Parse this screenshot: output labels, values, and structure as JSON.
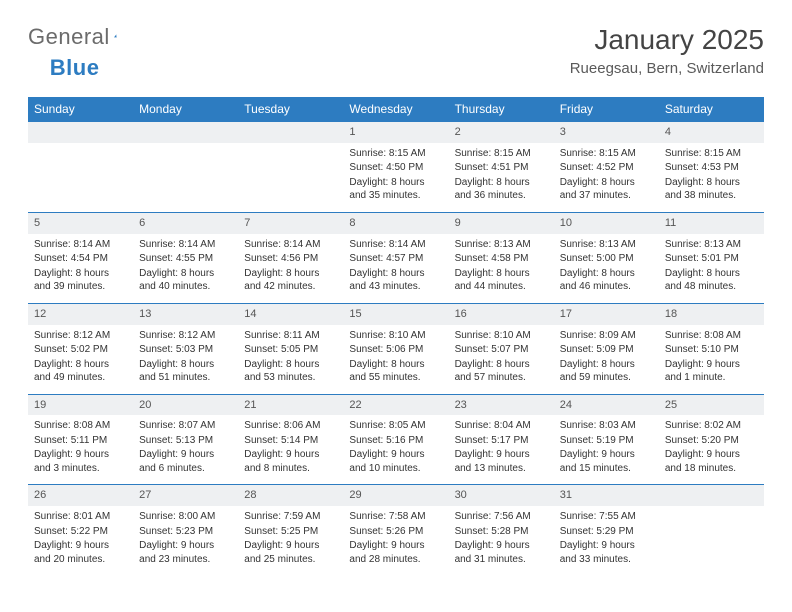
{
  "logo": {
    "general": "General",
    "blue": "Blue"
  },
  "header": {
    "title": "January 2025",
    "location": "Rueegsau, Bern, Switzerland"
  },
  "colors": {
    "header_bg": "#2d7cc1",
    "header_fg": "#ffffff",
    "daynum_bg": "#eef0f2",
    "border": "#2d7cc1",
    "text": "#333333",
    "logo_gray": "#6b6b6b"
  },
  "weekdays": [
    "Sunday",
    "Monday",
    "Tuesday",
    "Wednesday",
    "Thursday",
    "Friday",
    "Saturday"
  ],
  "weeks": [
    [
      null,
      null,
      null,
      {
        "n": "1",
        "sr": "8:15 AM",
        "ss": "4:50 PM",
        "dl": "8 hours and 35 minutes."
      },
      {
        "n": "2",
        "sr": "8:15 AM",
        "ss": "4:51 PM",
        "dl": "8 hours and 36 minutes."
      },
      {
        "n": "3",
        "sr": "8:15 AM",
        "ss": "4:52 PM",
        "dl": "8 hours and 37 minutes."
      },
      {
        "n": "4",
        "sr": "8:15 AM",
        "ss": "4:53 PM",
        "dl": "8 hours and 38 minutes."
      }
    ],
    [
      {
        "n": "5",
        "sr": "8:14 AM",
        "ss": "4:54 PM",
        "dl": "8 hours and 39 minutes."
      },
      {
        "n": "6",
        "sr": "8:14 AM",
        "ss": "4:55 PM",
        "dl": "8 hours and 40 minutes."
      },
      {
        "n": "7",
        "sr": "8:14 AM",
        "ss": "4:56 PM",
        "dl": "8 hours and 42 minutes."
      },
      {
        "n": "8",
        "sr": "8:14 AM",
        "ss": "4:57 PM",
        "dl": "8 hours and 43 minutes."
      },
      {
        "n": "9",
        "sr": "8:13 AM",
        "ss": "4:58 PM",
        "dl": "8 hours and 44 minutes."
      },
      {
        "n": "10",
        "sr": "8:13 AM",
        "ss": "5:00 PM",
        "dl": "8 hours and 46 minutes."
      },
      {
        "n": "11",
        "sr": "8:13 AM",
        "ss": "5:01 PM",
        "dl": "8 hours and 48 minutes."
      }
    ],
    [
      {
        "n": "12",
        "sr": "8:12 AM",
        "ss": "5:02 PM",
        "dl": "8 hours and 49 minutes."
      },
      {
        "n": "13",
        "sr": "8:12 AM",
        "ss": "5:03 PM",
        "dl": "8 hours and 51 minutes."
      },
      {
        "n": "14",
        "sr": "8:11 AM",
        "ss": "5:05 PM",
        "dl": "8 hours and 53 minutes."
      },
      {
        "n": "15",
        "sr": "8:10 AM",
        "ss": "5:06 PM",
        "dl": "8 hours and 55 minutes."
      },
      {
        "n": "16",
        "sr": "8:10 AM",
        "ss": "5:07 PM",
        "dl": "8 hours and 57 minutes."
      },
      {
        "n": "17",
        "sr": "8:09 AM",
        "ss": "5:09 PM",
        "dl": "8 hours and 59 minutes."
      },
      {
        "n": "18",
        "sr": "8:08 AM",
        "ss": "5:10 PM",
        "dl": "9 hours and 1 minute."
      }
    ],
    [
      {
        "n": "19",
        "sr": "8:08 AM",
        "ss": "5:11 PM",
        "dl": "9 hours and 3 minutes."
      },
      {
        "n": "20",
        "sr": "8:07 AM",
        "ss": "5:13 PM",
        "dl": "9 hours and 6 minutes."
      },
      {
        "n": "21",
        "sr": "8:06 AM",
        "ss": "5:14 PM",
        "dl": "9 hours and 8 minutes."
      },
      {
        "n": "22",
        "sr": "8:05 AM",
        "ss": "5:16 PM",
        "dl": "9 hours and 10 minutes."
      },
      {
        "n": "23",
        "sr": "8:04 AM",
        "ss": "5:17 PM",
        "dl": "9 hours and 13 minutes."
      },
      {
        "n": "24",
        "sr": "8:03 AM",
        "ss": "5:19 PM",
        "dl": "9 hours and 15 minutes."
      },
      {
        "n": "25",
        "sr": "8:02 AM",
        "ss": "5:20 PM",
        "dl": "9 hours and 18 minutes."
      }
    ],
    [
      {
        "n": "26",
        "sr": "8:01 AM",
        "ss": "5:22 PM",
        "dl": "9 hours and 20 minutes."
      },
      {
        "n": "27",
        "sr": "8:00 AM",
        "ss": "5:23 PM",
        "dl": "9 hours and 23 minutes."
      },
      {
        "n": "28",
        "sr": "7:59 AM",
        "ss": "5:25 PM",
        "dl": "9 hours and 25 minutes."
      },
      {
        "n": "29",
        "sr": "7:58 AM",
        "ss": "5:26 PM",
        "dl": "9 hours and 28 minutes."
      },
      {
        "n": "30",
        "sr": "7:56 AM",
        "ss": "5:28 PM",
        "dl": "9 hours and 31 minutes."
      },
      {
        "n": "31",
        "sr": "7:55 AM",
        "ss": "5:29 PM",
        "dl": "9 hours and 33 minutes."
      },
      null
    ]
  ],
  "labels": {
    "sunrise": "Sunrise:",
    "sunset": "Sunset:",
    "daylight": "Daylight:"
  }
}
